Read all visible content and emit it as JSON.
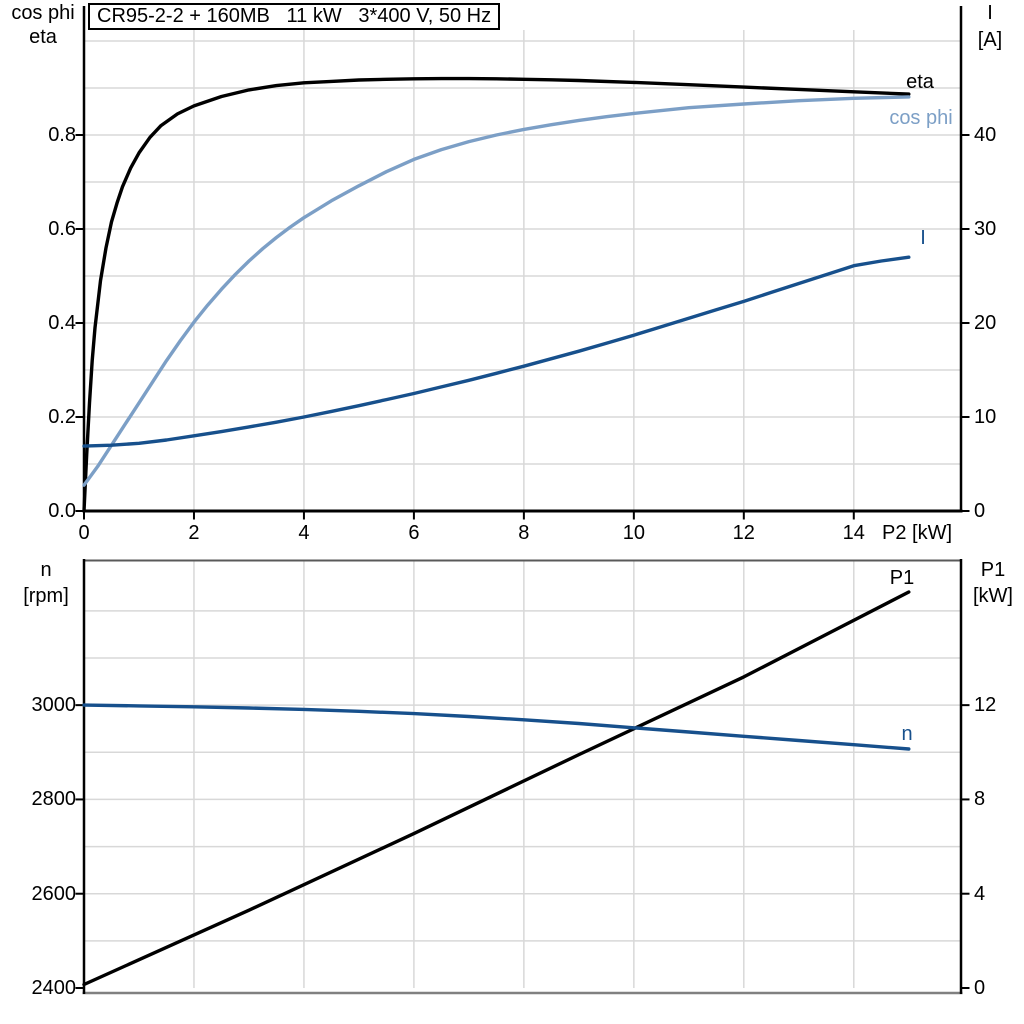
{
  "title": "CR95-2-2 + 160MB   11 kW   3*400 V, 50 Hz",
  "colors": {
    "eta_p1_curve": "#000000",
    "cos_phi_curve": "#7C9FC6",
    "i_n_curve": "#17508C",
    "gridline": "#D8D8D8",
    "axis": "#000000",
    "plot_top_border": "#595959",
    "plot_bottom_border": "#808080"
  },
  "chart_data": [
    {
      "type": "line",
      "name": "efficiency-cosphi-current-vs-p2",
      "x_axis": {
        "label": "P2 [kW]",
        "min": 0,
        "max": 15.95,
        "tick_values": [
          0,
          2,
          4,
          6,
          8,
          10,
          12,
          14
        ],
        "tick_labels": [
          "0",
          "2",
          "4",
          "6",
          "8",
          "10",
          "12",
          "14"
        ],
        "grid_values": [
          2,
          4,
          6,
          8,
          10,
          12,
          14
        ]
      },
      "left_axis": {
        "label_lines": [
          "cos phi",
          "eta"
        ],
        "min": 0,
        "max": 1.0,
        "tick_values": [
          0,
          0.2,
          0.4,
          0.6,
          0.8
        ],
        "tick_labels": [
          "0.0",
          "0.2",
          "0.4",
          "0.6",
          "0.8"
        ],
        "grid_values": [
          0.1,
          0.2,
          0.3,
          0.4,
          0.5,
          0.6,
          0.7,
          0.8,
          0.9,
          1.0
        ]
      },
      "right_axis": {
        "label_lines": [
          "I",
          "[A]"
        ],
        "min": 0,
        "max": 50,
        "tick_values": [
          0,
          10,
          20,
          30,
          40
        ],
        "tick_labels": [
          "0",
          "10",
          "20",
          "30",
          "40"
        ]
      },
      "series": [
        {
          "name": "eta",
          "label": "eta",
          "color": "#000000",
          "axis": "left",
          "points": [
            [
              0,
              0
            ],
            [
              0.05,
              0.12
            ],
            [
              0.1,
              0.23
            ],
            [
              0.15,
              0.32
            ],
            [
              0.2,
              0.39
            ],
            [
              0.3,
              0.49
            ],
            [
              0.4,
              0.56
            ],
            [
              0.5,
              0.615
            ],
            [
              0.6,
              0.655
            ],
            [
              0.7,
              0.69
            ],
            [
              0.85,
              0.73
            ],
            [
              1,
              0.762
            ],
            [
              1.2,
              0.795
            ],
            [
              1.4,
              0.82
            ],
            [
              1.7,
              0.845
            ],
            [
              2,
              0.862
            ],
            [
              2.5,
              0.882
            ],
            [
              3,
              0.896
            ],
            [
              3.5,
              0.905
            ],
            [
              4,
              0.911
            ],
            [
              4.5,
              0.914
            ],
            [
              5,
              0.917
            ],
            [
              5.5,
              0.9185
            ],
            [
              6,
              0.9195
            ],
            [
              6.5,
              0.92
            ],
            [
              7,
              0.92
            ],
            [
              7.5,
              0.9195
            ],
            [
              8,
              0.9185
            ],
            [
              8.5,
              0.9175
            ],
            [
              9,
              0.916
            ],
            [
              10,
              0.912
            ],
            [
              11,
              0.907
            ],
            [
              12,
              0.902
            ],
            [
              13,
              0.897
            ],
            [
              14,
              0.892
            ],
            [
              15,
              0.887
            ]
          ]
        },
        {
          "name": "cos_phi",
          "label": "cos phi",
          "color": "#7C9FC6",
          "axis": "left",
          "points": [
            [
              0,
              0.055
            ],
            [
              0.25,
              0.095
            ],
            [
              0.5,
              0.14
            ],
            [
              0.75,
              0.185
            ],
            [
              1,
              0.23
            ],
            [
              1.25,
              0.275
            ],
            [
              1.5,
              0.32
            ],
            [
              1.75,
              0.362
            ],
            [
              2,
              0.402
            ],
            [
              2.25,
              0.438
            ],
            [
              2.5,
              0.472
            ],
            [
              2.75,
              0.503
            ],
            [
              3,
              0.532
            ],
            [
              3.25,
              0.558
            ],
            [
              3.5,
              0.582
            ],
            [
              3.75,
              0.604
            ],
            [
              4,
              0.624
            ],
            [
              4.5,
              0.66
            ],
            [
              5,
              0.692
            ],
            [
              5.5,
              0.722
            ],
            [
              6,
              0.748
            ],
            [
              6.5,
              0.769
            ],
            [
              7,
              0.786
            ],
            [
              7.5,
              0.8
            ],
            [
              8,
              0.812
            ],
            [
              8.5,
              0.822
            ],
            [
              9,
              0.831
            ],
            [
              9.5,
              0.839
            ],
            [
              10,
              0.846
            ],
            [
              11,
              0.858
            ],
            [
              12,
              0.866
            ],
            [
              13,
              0.873
            ],
            [
              14,
              0.878
            ],
            [
              15,
              0.881
            ]
          ]
        },
        {
          "name": "I",
          "label": "I",
          "color": "#17508C",
          "axis": "right",
          "points": [
            [
              0,
              6.9
            ],
            [
              0.5,
              7.0
            ],
            [
              1,
              7.2
            ],
            [
              1.5,
              7.55
            ],
            [
              2,
              8.0
            ],
            [
              2.5,
              8.45
            ],
            [
              3,
              8.95
            ],
            [
              3.5,
              9.45
            ],
            [
              4,
              10.0
            ],
            [
              4.5,
              10.6
            ],
            [
              5,
              11.2
            ],
            [
              5.5,
              11.85
            ],
            [
              6,
              12.5
            ],
            [
              6.5,
              13.2
            ],
            [
              7,
              13.9
            ],
            [
              7.5,
              14.65
            ],
            [
              8,
              15.4
            ],
            [
              8.5,
              16.2
            ],
            [
              9,
              17.0
            ],
            [
              9.5,
              17.85
            ],
            [
              10,
              18.7
            ],
            [
              10.5,
              19.6
            ],
            [
              11,
              20.5
            ],
            [
              11.5,
              21.4
            ],
            [
              12,
              22.3
            ],
            [
              12.5,
              23.25
            ],
            [
              13,
              24.2
            ],
            [
              13.5,
              25.15
            ],
            [
              14,
              26.1
            ],
            [
              14.5,
              26.6
            ],
            [
              15,
              27.0
            ]
          ]
        }
      ]
    },
    {
      "type": "line",
      "name": "speed-inputpower-vs-p2",
      "x_axis": {
        "label": "",
        "min": 0,
        "max": 15.95,
        "tick_values": [],
        "tick_labels": [],
        "grid_values": [
          2,
          4,
          6,
          8,
          10,
          12,
          14
        ]
      },
      "left_axis": {
        "label_lines": [
          "n",
          "[rpm]"
        ],
        "min": 2400,
        "max": 3310,
        "tick_values": [
          2400,
          2600,
          2800,
          3000
        ],
        "tick_labels": [
          "2400",
          "2600",
          "2800",
          "3000"
        ],
        "grid_values": [
          2500,
          2600,
          2700,
          2800,
          2900,
          3000,
          3100,
          3200
        ]
      },
      "right_axis": {
        "label_lines": [
          "P1",
          "[kW]"
        ],
        "min": 0,
        "max": 18.2,
        "tick_values": [
          0,
          4,
          8,
          12
        ],
        "tick_labels": [
          "0",
          "4",
          "8",
          "12"
        ]
      },
      "series": [
        {
          "name": "P1",
          "label": "P1",
          "color": "#000000",
          "axis": "right",
          "points": [
            [
              0,
              0.15
            ],
            [
              3,
              3.3
            ],
            [
              6,
              6.55
            ],
            [
              9,
              9.9
            ],
            [
              12,
              13.2
            ],
            [
              15,
              16.8
            ]
          ]
        },
        {
          "name": "n",
          "label": "n",
          "color": "#17508C",
          "axis": "left",
          "points": [
            [
              0,
              3000
            ],
            [
              1,
              2998.5
            ],
            [
              2,
              2996.5
            ],
            [
              3,
              2994
            ],
            [
              4,
              2991
            ],
            [
              5,
              2987
            ],
            [
              6,
              2982
            ],
            [
              7,
              2976
            ],
            [
              8,
              2969
            ],
            [
              9,
              2961
            ],
            [
              10,
              2952
            ],
            [
              11,
              2943
            ],
            [
              12,
              2934
            ],
            [
              13,
              2925
            ],
            [
              14,
              2916
            ],
            [
              15,
              2907
            ]
          ]
        }
      ]
    }
  ]
}
